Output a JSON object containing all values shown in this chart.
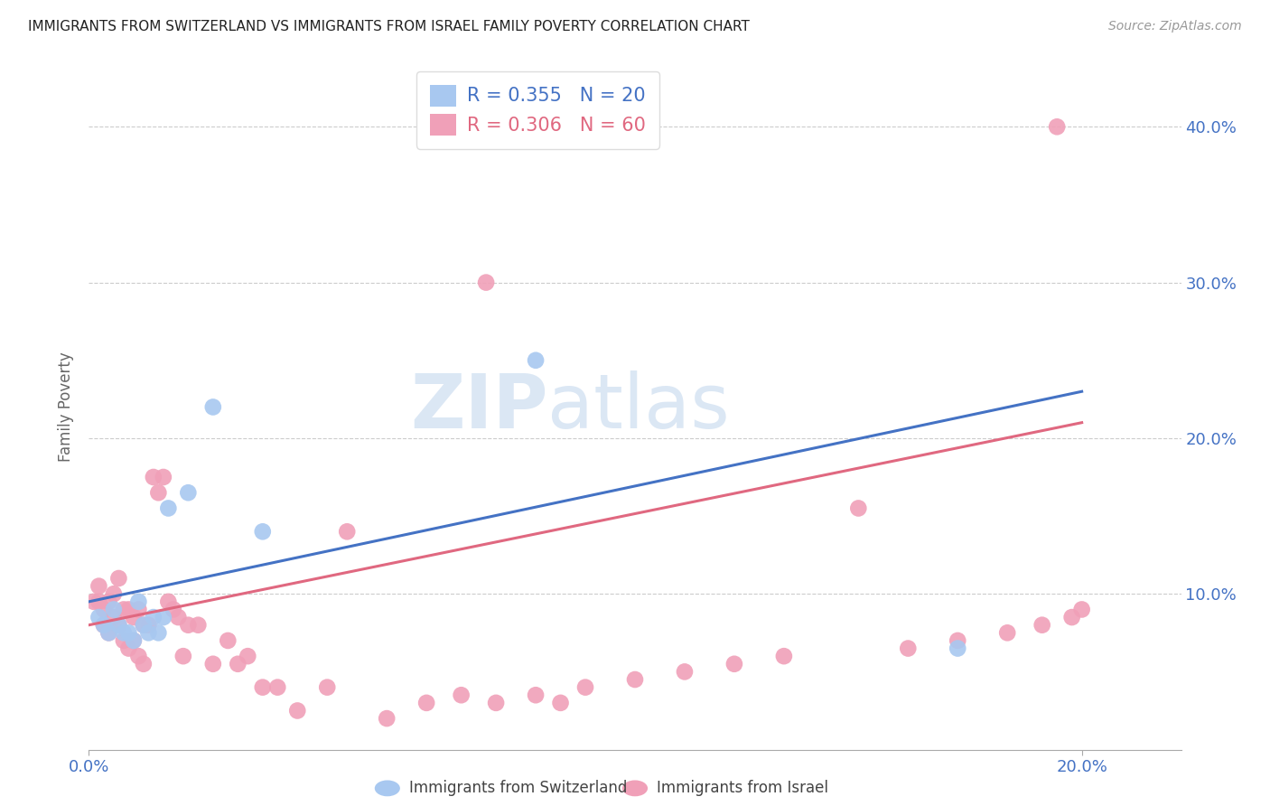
{
  "title": "IMMIGRANTS FROM SWITZERLAND VS IMMIGRANTS FROM ISRAEL FAMILY POVERTY CORRELATION CHART",
  "source": "Source: ZipAtlas.com",
  "ylabel": "Family Poverty",
  "xlim": [
    0.0,
    0.22
  ],
  "ylim": [
    0.0,
    0.44
  ],
  "yticks": [
    0.1,
    0.2,
    0.3,
    0.4
  ],
  "xticks": [
    0.0,
    0.2
  ],
  "xtick_labels": [
    "0.0%",
    "20.0%"
  ],
  "ytick_labels_right": [
    "10.0%",
    "20.0%",
    "30.0%",
    "40.0%"
  ],
  "legend_r1": "R = 0.355",
  "legend_n1": "N = 20",
  "legend_r2": "R = 0.306",
  "legend_n2": "N = 60",
  "color_swiss": "#a8c8f0",
  "color_israel": "#f0a0b8",
  "color_blue_line": "#4472c4",
  "color_pink_line": "#e06880",
  "color_axis_text": "#4472c4",
  "watermark_zip": "ZIP",
  "watermark_atlas": "atlas",
  "swiss_x": [
    0.002,
    0.003,
    0.004,
    0.005,
    0.006,
    0.007,
    0.008,
    0.009,
    0.01,
    0.011,
    0.012,
    0.013,
    0.014,
    0.015,
    0.016,
    0.02,
    0.025,
    0.035,
    0.09,
    0.175
  ],
  "swiss_y": [
    0.085,
    0.08,
    0.075,
    0.09,
    0.08,
    0.075,
    0.075,
    0.07,
    0.095,
    0.08,
    0.075,
    0.085,
    0.075,
    0.085,
    0.155,
    0.165,
    0.22,
    0.14,
    0.25,
    0.065
  ],
  "israel_x": [
    0.001,
    0.002,
    0.002,
    0.003,
    0.003,
    0.004,
    0.004,
    0.005,
    0.005,
    0.006,
    0.006,
    0.007,
    0.007,
    0.008,
    0.008,
    0.009,
    0.009,
    0.01,
    0.01,
    0.011,
    0.011,
    0.012,
    0.013,
    0.014,
    0.015,
    0.016,
    0.017,
    0.018,
    0.019,
    0.02,
    0.022,
    0.025,
    0.028,
    0.03,
    0.032,
    0.035,
    0.038,
    0.042,
    0.048,
    0.052,
    0.06,
    0.068,
    0.075,
    0.082,
    0.09,
    0.095,
    0.1,
    0.11,
    0.12,
    0.13,
    0.14,
    0.155,
    0.165,
    0.175,
    0.185,
    0.192,
    0.198,
    0.2,
    0.195,
    0.08
  ],
  "israel_y": [
    0.095,
    0.105,
    0.095,
    0.09,
    0.08,
    0.095,
    0.075,
    0.1,
    0.085,
    0.11,
    0.08,
    0.09,
    0.07,
    0.09,
    0.065,
    0.085,
    0.07,
    0.09,
    0.06,
    0.08,
    0.055,
    0.08,
    0.175,
    0.165,
    0.175,
    0.095,
    0.09,
    0.085,
    0.06,
    0.08,
    0.08,
    0.055,
    0.07,
    0.055,
    0.06,
    0.04,
    0.04,
    0.025,
    0.04,
    0.14,
    0.02,
    0.03,
    0.035,
    0.03,
    0.035,
    0.03,
    0.04,
    0.045,
    0.05,
    0.055,
    0.06,
    0.155,
    0.065,
    0.07,
    0.075,
    0.08,
    0.085,
    0.09,
    0.4,
    0.3
  ],
  "swiss_line_x": [
    0.0,
    0.2
  ],
  "swiss_line_y": [
    0.095,
    0.23
  ],
  "israel_line_x": [
    0.0,
    0.2
  ],
  "israel_line_y": [
    0.08,
    0.21
  ]
}
